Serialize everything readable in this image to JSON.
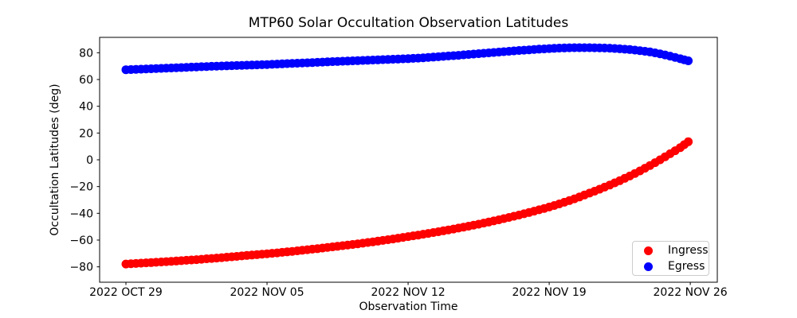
{
  "chart_data": {
    "type": "scatter",
    "title": "MTP60 Solar Occultation Observation Latitudes",
    "xlabel": "Observation Time",
    "ylabel": "Occultation Latitudes (deg)",
    "grid": false,
    "x_unit": "days since 2022 OCT 29",
    "xlim": [
      -1.305,
      29.34
    ],
    "ylim": [
      -91.5,
      91.5
    ],
    "x_ticks": [
      {
        "t": 0,
        "label": "2022 OCT 29"
      },
      {
        "t": 7,
        "label": "2022 NOV 05"
      },
      {
        "t": 14,
        "label": "2022 NOV 12"
      },
      {
        "t": 21,
        "label": "2022 NOV 19"
      },
      {
        "t": 28,
        "label": "2022 NOV 26"
      }
    ],
    "y_ticks": [
      {
        "value": 80,
        "label": "80"
      },
      {
        "value": 60,
        "label": "60"
      },
      {
        "value": 40,
        "label": "40"
      },
      {
        "value": 20,
        "label": "20"
      },
      {
        "value": 0,
        "label": "0"
      },
      {
        "value": -20,
        "label": "−20"
      },
      {
        "value": -40,
        "label": "−40"
      },
      {
        "value": -60,
        "label": "−60"
      },
      {
        "value": -80,
        "label": "−80"
      }
    ],
    "legend": {
      "position": "lower right",
      "entries": [
        {
          "label": "Ingress",
          "color": "#ff0000"
        },
        {
          "label": "Egress",
          "color": "#0000ff"
        }
      ]
    },
    "marker": {
      "shape": "circle",
      "radius_px": 5.5
    },
    "t": [
      0,
      0.5,
      1,
      1.5,
      2,
      2.5,
      3,
      3.5,
      4,
      4.5,
      5,
      5.5,
      6,
      6.5,
      7,
      7.5,
      8,
      8.5,
      9,
      9.5,
      10,
      10.5,
      11,
      11.5,
      12,
      12.5,
      13,
      13.5,
      14,
      14.5,
      15,
      15.5,
      16,
      16.5,
      17,
      17.5,
      18,
      18.5,
      19,
      19.5,
      20,
      20.5,
      21,
      21.5,
      22,
      22.5,
      23,
      23.5,
      24,
      24.5,
      25,
      25.5,
      26,
      26.5,
      27,
      27.5,
      27.9
    ],
    "series": [
      {
        "name": "Ingress",
        "color": "#ff0000",
        "values": [
          -77.9,
          -77.45,
          -77.0,
          -76.6,
          -76.1,
          -75.65,
          -75.1,
          -74.6,
          -74.0,
          -73.45,
          -72.8,
          -72.2,
          -71.5,
          -70.9,
          -70.2,
          -69.55,
          -68.8,
          -68.05,
          -67.2,
          -66.4,
          -65.5,
          -64.65,
          -63.7,
          -62.8,
          -61.8,
          -60.8,
          -59.7,
          -58.6,
          -57.4,
          -56.25,
          -55.0,
          -53.75,
          -52.4,
          -51.05,
          -49.6,
          -48.1,
          -46.5,
          -44.85,
          -43.1,
          -41.3,
          -39.4,
          -37.4,
          -35.3,
          -33.0,
          -30.5,
          -27.8,
          -24.9,
          -22.0,
          -18.9,
          -15.6,
          -12.1,
          -8.3,
          -4.3,
          0.0,
          4.5,
          9.1,
          13.5
        ]
      },
      {
        "name": "Egress",
        "color": "#0000ff",
        "values": [
          67.3,
          67.6,
          67.9,
          68.2,
          68.5,
          68.8,
          69.1,
          69.4,
          69.7,
          70.0,
          70.2,
          70.45,
          70.7,
          70.95,
          71.2,
          71.55,
          71.9,
          72.2,
          72.5,
          72.85,
          73.2,
          73.5,
          73.8,
          74.1,
          74.4,
          74.7,
          75.0,
          75.3,
          75.6,
          76.0,
          76.5,
          77.0,
          77.6,
          78.1,
          78.7,
          79.3,
          79.9,
          80.5,
          81.1,
          81.7,
          82.2,
          82.7,
          83.1,
          83.45,
          83.7,
          83.8,
          83.8,
          83.65,
          83.4,
          82.95,
          82.4,
          81.6,
          80.6,
          79.2,
          77.5,
          75.5,
          74.0
        ]
      }
    ]
  }
}
